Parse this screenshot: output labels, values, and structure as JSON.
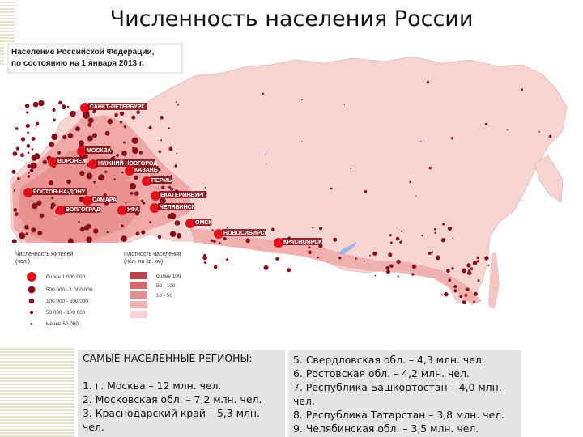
{
  "title": "Численность населения России",
  "map": {
    "header_line1": "Население Российской Федерации,",
    "header_line2": "по состоянию на 1 января 2013 г.",
    "cities": [
      {
        "name": "САНКТ-ПЕТЕРБУРГ"
      },
      {
        "name": "МОСКВА"
      },
      {
        "name": "ВОРОНЕЖ"
      },
      {
        "name": "НИЖНИЙ НОВГОРОД"
      },
      {
        "name": "КАЗАНЬ"
      },
      {
        "name": "ПЕРМЬ"
      },
      {
        "name": "РОСТОВ-НА-ДОНУ"
      },
      {
        "name": "САМАРА"
      },
      {
        "name": "ЕКАТЕРИНБУРГ"
      },
      {
        "name": "ВОЛГОГРАД"
      },
      {
        "name": "УФА"
      },
      {
        "name": "ЧЕЛЯБИНСК"
      },
      {
        "name": "ОМСК"
      },
      {
        "name": "НОВОСИБИРСК"
      },
      {
        "name": "КРАСНОЯРСК"
      }
    ],
    "legend_pop": {
      "title_line1": "Численность жителей",
      "title_line2": "(чел.)",
      "items": [
        "более 1 000 000",
        "500 000 - 1 000 000",
        "100 000 - 500 000",
        "50 000 - 100 000",
        "менее 50 000"
      ]
    },
    "legend_density": {
      "title_line1": "Плотность населения",
      "title_line2": "(чел. на кв. км)",
      "items": [
        "более 100",
        "50 - 100",
        "10 - 50",
        "",
        ""
      ]
    },
    "colors": {
      "dot": "#8a0f1a",
      "big_city": "#e3101c",
      "territory": "#f7d5d3",
      "dense": "#e58a8a",
      "label_bg": "#7c0d15"
    }
  },
  "regions_left": {
    "header": "САМЫЕ НАСЕЛЕННЫЕ РЕГИОНЫ:",
    "items": [
      "1. г. Москва – 12 млн. чел.",
      "2. Московская обл. – 7,2 млн. чел.",
      "3. Краснодарский край – 5,3 млн.",
      "чел."
    ]
  },
  "regions_right": {
    "items": [
      "5. Свердловская обл. – 4,3 млн. чел.",
      "6. Ростовская обл. – 4,2 млн. чел.",
      "7. Республика Башкортостан – 4,0 млн.",
      "чел.",
      "8. Республика Татарстан – 3,8 млн. чел.",
      "9. Челябинская обл. – 3,5 млн. чел."
    ]
  }
}
